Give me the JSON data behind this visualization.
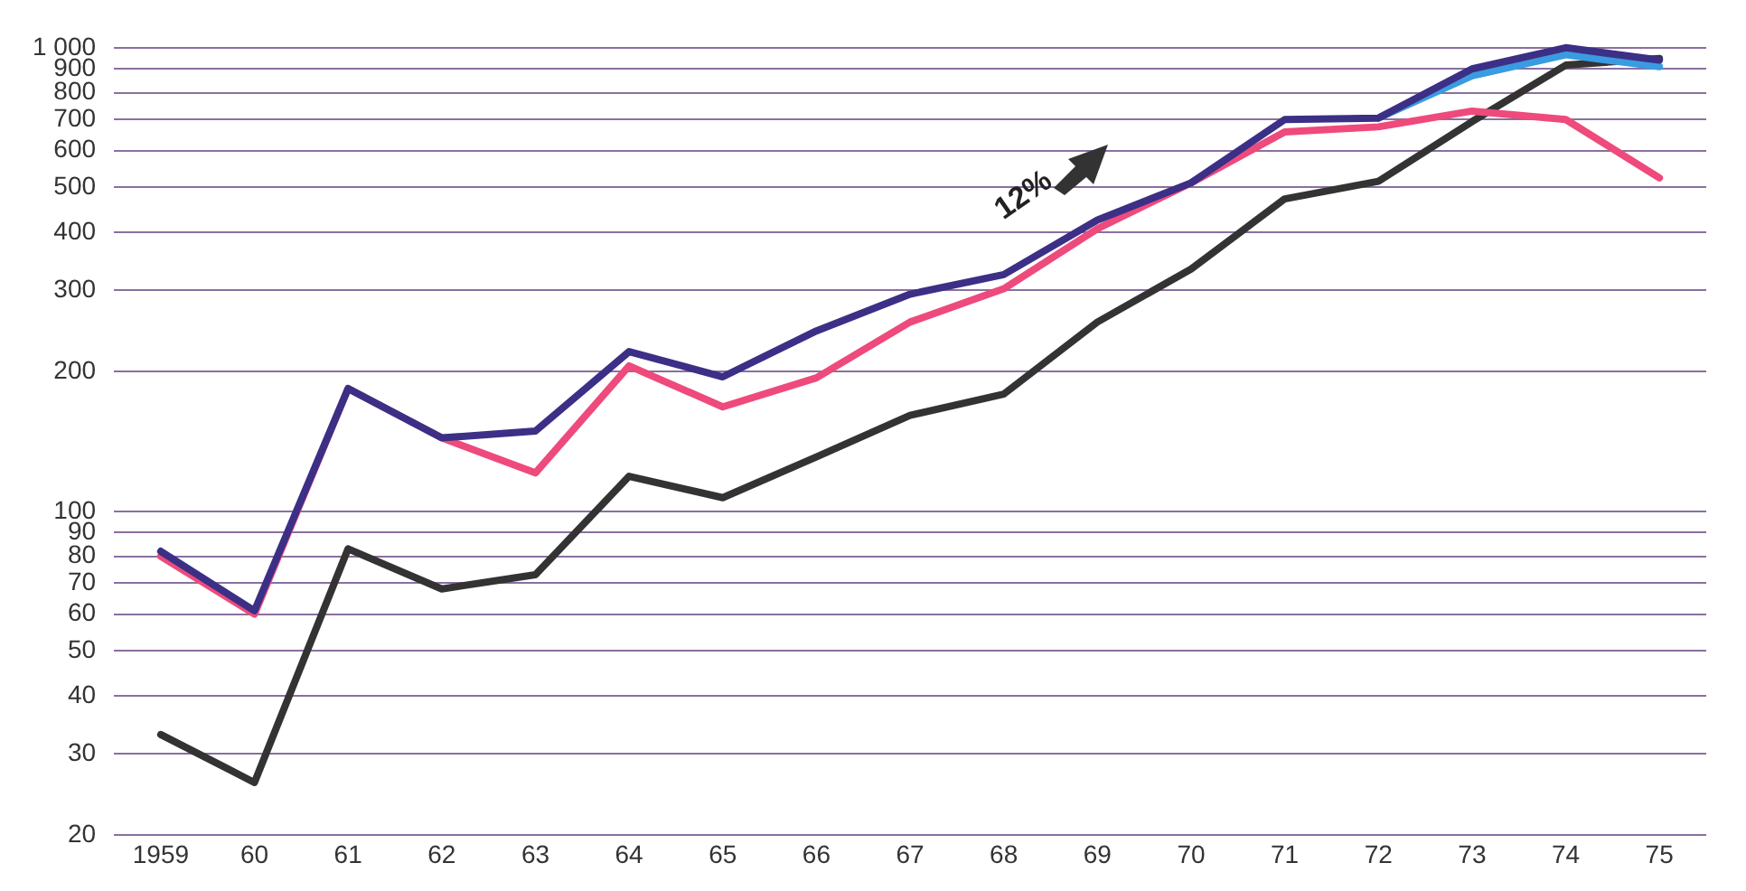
{
  "chart_data": {
    "type": "line",
    "categories": [
      "1959",
      "60",
      "61",
      "62",
      "63",
      "64",
      "65",
      "66",
      "67",
      "68",
      "69",
      "70",
      "71",
      "72",
      "73",
      "74",
      "75"
    ],
    "series": [
      {
        "color": "#3b2f86",
        "values": [
          82,
          61,
          184,
          144,
          149,
          221,
          195,
          245,
          294,
          324,
          425,
          511,
          700,
          705,
          900,
          1000,
          940
        ]
      },
      {
        "color": "#3a9be0",
        "values": [
          null,
          null,
          null,
          null,
          null,
          null,
          null,
          null,
          null,
          null,
          null,
          null,
          null,
          705,
          870,
          966,
          910
        ]
      },
      {
        "color": "#ee4a7c",
        "values": [
          80,
          60,
          184,
          144,
          121,
          206,
          168,
          194,
          256,
          302,
          407,
          511,
          658,
          675,
          730,
          700,
          524
        ]
      },
      {
        "color": "#333333",
        "values": [
          33,
          26,
          83,
          68,
          73,
          119,
          107,
          131,
          161,
          179,
          256,
          333,
          472,
          515,
          693,
          917,
          948
        ]
      }
    ],
    "log": "y",
    "ylim": [
      20,
      1000
    ],
    "yticks": [
      20,
      30,
      40,
      50,
      60,
      70,
      80,
      90,
      100,
      200,
      300,
      400,
      500,
      600,
      700,
      800,
      900,
      {
        "value": 1000,
        "label": "1 000"
      }
    ],
    "grid": "y",
    "legend": false,
    "marker": "none",
    "line_style": "solid",
    "annotations": [
      "12%"
    ]
  }
}
